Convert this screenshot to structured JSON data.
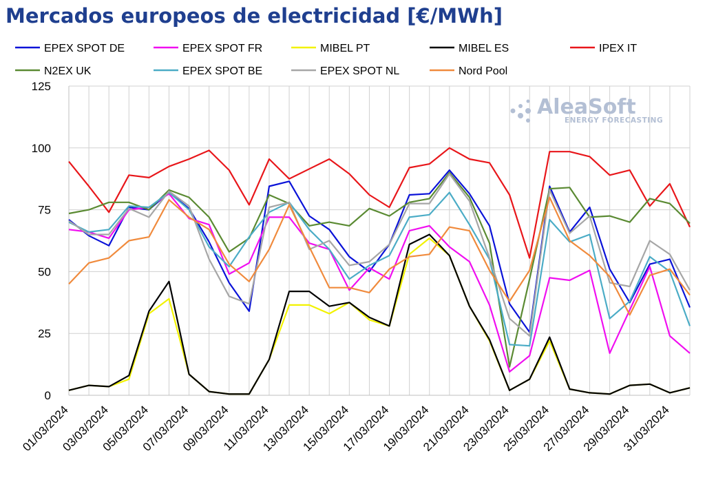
{
  "chart_data": {
    "type": "line",
    "title": "Mercados europeos de electricidad [€/MWh]",
    "xlabel": "",
    "ylabel": "",
    "ylim": [
      0,
      125
    ],
    "yticks": [
      0,
      25,
      50,
      75,
      100,
      125
    ],
    "grid": true,
    "legend": "top",
    "x": [
      "01/03/2024",
      "02/03/2024",
      "03/03/2024",
      "04/03/2024",
      "05/03/2024",
      "06/03/2024",
      "07/03/2024",
      "08/03/2024",
      "09/03/2024",
      "10/03/2024",
      "11/03/2024",
      "12/03/2024",
      "13/03/2024",
      "14/03/2024",
      "15/03/2024",
      "16/03/2024",
      "17/03/2024",
      "18/03/2024",
      "19/03/2024",
      "20/03/2024",
      "21/03/2024",
      "22/03/2024",
      "23/03/2024",
      "24/03/2024",
      "25/03/2024",
      "26/03/2024",
      "27/03/2024",
      "28/03/2024",
      "29/03/2024",
      "30/03/2024",
      "31/03/2024",
      "01/04/2024"
    ],
    "xtick_labels": [
      "01/03/2024",
      "03/03/2024",
      "05/03/2024",
      "07/03/2024",
      "09/03/2024",
      "11/03/2024",
      "13/03/2024",
      "15/03/2024",
      "17/03/2024",
      "19/03/2024",
      "21/03/2024",
      "23/03/2024",
      "25/03/2024",
      "27/03/2024",
      "29/03/2024",
      "31/03/2024"
    ],
    "series": [
      {
        "name": "EPEX SPOT DE",
        "color": "#0a12d8",
        "values": [
          71.0,
          64.5,
          60.5,
          76.0,
          75.0,
          82.0,
          75.5,
          62.0,
          45.5,
          34.0,
          84.5,
          86.5,
          72.5,
          67.0,
          56.0,
          50.0,
          61.0,
          81.0,
          81.5,
          91.0,
          81.5,
          68.5,
          37.0,
          25.5,
          84.5,
          66.0,
          76.0,
          51.0,
          37.5,
          53.0,
          55.0,
          35.5
        ]
      },
      {
        "name": "EPEX SPOT FR",
        "color": "#f00ef0",
        "values": [
          67.0,
          66.0,
          63.5,
          75.0,
          76.0,
          81.5,
          71.5,
          69.0,
          49.0,
          53.5,
          72.0,
          72.0,
          61.5,
          59.0,
          42.5,
          51.5,
          47.0,
          66.5,
          68.5,
          60.0,
          54.0,
          36.5,
          9.5,
          16.0,
          47.5,
          46.5,
          50.5,
          17.0,
          34.5,
          52.0,
          24.0,
          17.0
        ]
      },
      {
        "name": "MIBEL PT",
        "color": "#f2f200",
        "values": [
          2.0,
          4.0,
          3.5,
          6.5,
          33.0,
          39.0,
          8.5,
          1.5,
          0.5,
          0.5,
          14.5,
          36.5,
          36.5,
          33.0,
          37.5,
          30.5,
          28.0,
          57.0,
          63.5,
          56.5,
          36.0,
          22.0,
          2.0,
          6.5,
          22.0,
          2.5,
          1.0,
          0.5,
          4.0,
          4.5,
          1.0,
          3.0
        ]
      },
      {
        "name": "MIBEL ES",
        "color": "#000000",
        "values": [
          2.0,
          4.0,
          3.5,
          8.0,
          34.0,
          46.0,
          8.5,
          1.5,
          0.5,
          0.5,
          14.5,
          42.0,
          42.0,
          36.0,
          37.5,
          31.5,
          28.0,
          61.0,
          65.0,
          56.5,
          36.0,
          22.5,
          2.0,
          6.5,
          23.5,
          2.5,
          1.0,
          0.5,
          4.0,
          4.5,
          1.0,
          3.0
        ]
      },
      {
        "name": "IPEX IT",
        "color": "#e8161a",
        "values": [
          94.5,
          84.5,
          74.0,
          89.0,
          88.0,
          92.5,
          95.5,
          99.0,
          91.0,
          77.0,
          95.5,
          87.5,
          91.5,
          95.5,
          89.5,
          81.0,
          76.0,
          92.0,
          93.5,
          100.0,
          95.5,
          94.0,
          81.0,
          55.5,
          98.5,
          98.5,
          96.5,
          89.0,
          91.0,
          76.5,
          85.5,
          68.0
        ]
      },
      {
        "name": "N2EX UK",
        "color": "#5a8a32",
        "values": [
          73.5,
          75.0,
          78.0,
          78.0,
          75.0,
          83.0,
          80.0,
          72.0,
          58.0,
          63.5,
          81.0,
          77.5,
          68.5,
          70.0,
          68.5,
          75.5,
          72.5,
          78.0,
          79.5,
          90.0,
          80.0,
          61.5,
          11.5,
          47.0,
          83.5,
          84.0,
          72.0,
          72.5,
          70.0,
          79.5,
          77.5,
          69.5
        ]
      },
      {
        "name": "EPEX SPOT BE",
        "color": "#4bacc6",
        "values": [
          70.0,
          66.0,
          67.0,
          76.5,
          76.0,
          82.0,
          75.0,
          60.0,
          52.0,
          64.0,
          74.0,
          78.0,
          67.0,
          59.0,
          47.0,
          52.5,
          56.5,
          72.0,
          73.0,
          82.0,
          69.0,
          55.0,
          20.5,
          20.0,
          71.0,
          62.0,
          65.0,
          31.0,
          38.0,
          56.0,
          50.0,
          28.0
        ]
      },
      {
        "name": "EPEX SPOT NL",
        "color": "#a6a6a6",
        "values": [
          70.5,
          65.0,
          65.0,
          75.5,
          72.0,
          82.5,
          76.5,
          55.0,
          40.0,
          37.0,
          76.0,
          78.0,
          59.0,
          62.5,
          52.5,
          54.0,
          61.0,
          77.5,
          77.5,
          89.5,
          78.5,
          55.5,
          31.0,
          24.0,
          83.0,
          65.5,
          72.5,
          45.5,
          44.0,
          62.5,
          57.0,
          42.5
        ]
      },
      {
        "name": "Nord Pool",
        "color": "#f08a3c",
        "values": [
          45.0,
          53.5,
          55.5,
          62.5,
          64.0,
          79.0,
          72.0,
          67.0,
          53.0,
          46.0,
          59.0,
          77.0,
          60.0,
          43.5,
          43.5,
          41.5,
          51.0,
          56.0,
          57.0,
          68.0,
          66.5,
          50.5,
          38.0,
          50.5,
          80.0,
          62.5,
          56.5,
          48.0,
          32.5,
          48.5,
          51.0,
          40.5
        ]
      }
    ]
  },
  "watermark": {
    "brand": "AleaSoft",
    "tagline": "ENERGY FORECASTING"
  }
}
